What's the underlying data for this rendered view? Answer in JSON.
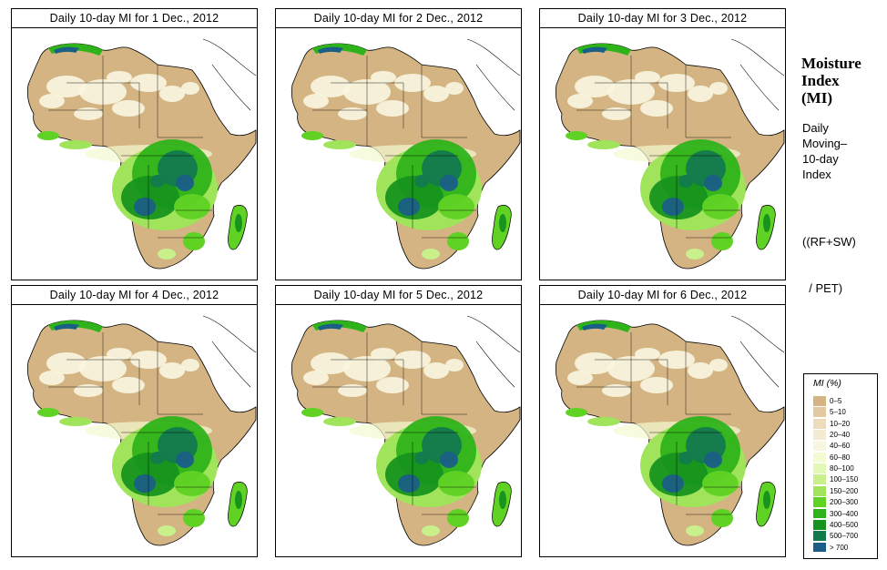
{
  "panels": [
    {
      "title": "Daily 10-day MI for  1 Dec., 2012"
    },
    {
      "title": "Daily 10-day MI for  2 Dec., 2012"
    },
    {
      "title": "Daily 10-day MI for  3 Dec., 2012"
    },
    {
      "title": "Daily 10-day MI for  4 Dec., 2012"
    },
    {
      "title": "Daily 10-day MI for  5 Dec., 2012"
    },
    {
      "title": "Daily 10-day MI for  6 Dec., 2012"
    }
  ],
  "sidebar": {
    "title_lines": [
      "Moisture",
      "Index",
      "(MI)"
    ],
    "desc_lines": [
      "Daily",
      "Moving–",
      "10-day",
      "Index"
    ],
    "formula_lines": [
      "((RF+SW)",
      "  / PET)"
    ]
  },
  "legend": {
    "title": "MI (%)",
    "items": [
      {
        "label": "0–5",
        "color": "#d4b483"
      },
      {
        "label": "5–10",
        "color": "#e2c9a0"
      },
      {
        "label": "10–20",
        "color": "#ecdcbc"
      },
      {
        "label": "20–40",
        "color": "#f3ead3"
      },
      {
        "label": "40–60",
        "color": "#f8f6e0"
      },
      {
        "label": "60–80",
        "color": "#f3fbd2"
      },
      {
        "label": "80–100",
        "color": "#e2f8b4"
      },
      {
        "label": "100–150",
        "color": "#c9f08a"
      },
      {
        "label": "150–200",
        "color": "#9fe45a"
      },
      {
        "label": "200–300",
        "color": "#5fd224"
      },
      {
        "label": "300–400",
        "color": "#2fb31a"
      },
      {
        "label": "400–500",
        "color": "#17931e"
      },
      {
        "label": "500–700",
        "color": "#137a4e"
      },
      {
        "label": "> 700",
        "color": "#1a5f86"
      }
    ]
  }
}
